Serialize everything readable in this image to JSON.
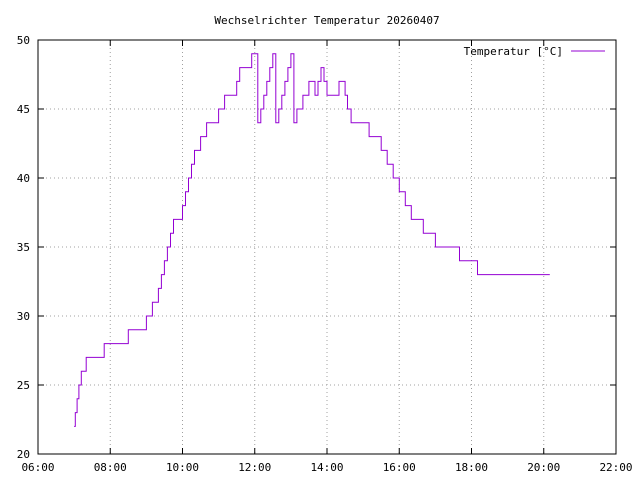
{
  "chart_data": {
    "type": "line",
    "title": "Wechselrichter Temperatur 20260407",
    "xlabel": "",
    "ylabel": "",
    "xlim": [
      "06:00",
      "22:00"
    ],
    "ylim": [
      20,
      50
    ],
    "x_ticks": [
      "06:00",
      "08:00",
      "10:00",
      "12:00",
      "14:00",
      "16:00",
      "18:00",
      "20:00",
      "22:00"
    ],
    "y_ticks": [
      "20",
      "25",
      "30",
      "35",
      "40",
      "45",
      "50"
    ],
    "grid": true,
    "legend_position": "top-right",
    "series_color": "#9400d3",
    "series": [
      {
        "name": "Temperatur [°C]",
        "x": [
          "07:00",
          "07:02",
          "07:05",
          "07:08",
          "07:12",
          "07:20",
          "07:30",
          "07:50",
          "08:10",
          "08:30",
          "09:00",
          "09:10",
          "09:12",
          "09:20",
          "09:25",
          "09:28",
          "09:30",
          "09:35",
          "09:40",
          "09:45",
          "09:50",
          "10:00",
          "10:05",
          "10:10",
          "10:15",
          "10:20",
          "10:25",
          "10:30",
          "10:40",
          "10:50",
          "11:00",
          "11:10",
          "11:20",
          "11:30",
          "11:35",
          "11:50",
          "11:55",
          "12:05",
          "12:10",
          "12:15",
          "12:20",
          "12:25",
          "12:30",
          "12:35",
          "12:40",
          "12:45",
          "12:50",
          "12:55",
          "13:00",
          "13:05",
          "13:10",
          "13:15",
          "13:20",
          "13:25",
          "13:30",
          "13:35",
          "13:40",
          "13:45",
          "13:50",
          "13:55",
          "14:00",
          "14:10",
          "14:20",
          "14:25",
          "14:30",
          "14:32",
          "14:34",
          "14:35",
          "14:40",
          "14:50",
          "15:00",
          "15:10",
          "15:20",
          "15:30",
          "15:40",
          "15:45",
          "15:50",
          "16:00",
          "16:10",
          "16:20",
          "16:30",
          "16:40",
          "16:50",
          "17:00",
          "17:10",
          "17:20",
          "17:30",
          "17:40",
          "17:45",
          "17:50",
          "18:00",
          "18:10",
          "18:20",
          "18:30",
          "18:40",
          "18:50",
          "19:00",
          "19:10",
          "19:20",
          "19:30",
          "19:40",
          "19:50",
          "20:00",
          "20:10"
        ],
        "y": [
          22,
          23,
          24,
          25,
          26,
          27,
          27,
          28,
          28,
          29,
          30,
          31,
          31,
          32,
          33,
          33,
          34,
          35,
          36,
          37,
          37,
          38,
          39,
          40,
          41,
          42,
          42,
          43,
          44,
          44,
          45,
          46,
          46,
          47,
          48,
          48,
          49,
          44,
          45,
          46,
          47,
          48,
          49,
          44,
          45,
          46,
          47,
          48,
          49,
          44,
          45,
          45,
          46,
          46,
          47,
          47,
          46,
          47,
          48,
          47,
          46,
          46,
          47,
          47,
          46,
          46,
          45,
          45,
          44,
          44,
          44,
          43,
          43,
          42,
          41,
          41,
          40,
          39,
          38,
          37,
          37,
          36,
          36,
          35,
          35,
          35,
          35,
          34,
          34,
          34,
          34,
          33,
          33,
          33,
          33,
          33,
          33,
          33,
          33,
          33,
          33,
          33,
          33,
          33
        ]
      }
    ]
  }
}
